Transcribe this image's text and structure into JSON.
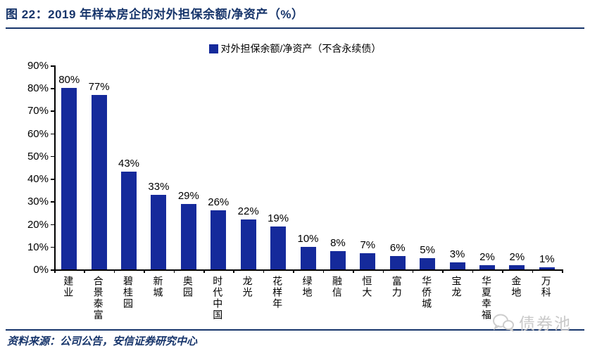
{
  "header": {
    "title": "图 22：2019 年样本房企的对外担保余额/净资产（%）"
  },
  "legend": {
    "label": "对外担保余额/净资产（不含永续债）"
  },
  "chart_data": {
    "type": "bar",
    "title": "2019 年样本房企的对外担保余额/净资产（%）",
    "categories": [
      "建业",
      "合景泰富",
      "碧桂园",
      "新城",
      "奥园",
      "时代中国",
      "龙光",
      "花样年",
      "绿地",
      "融信",
      "恒大",
      "富力",
      "华侨城",
      "宝龙",
      "华夏幸福",
      "金地",
      "万科"
    ],
    "values": [
      80,
      77,
      43,
      33,
      29,
      26,
      22,
      19,
      10,
      8,
      7,
      6,
      5,
      3,
      2,
      2,
      1
    ],
    "value_labels": [
      "80%",
      "77%",
      "43%",
      "33%",
      "29%",
      "26%",
      "22%",
      "19%",
      "10%",
      "8%",
      "7%",
      "6%",
      "5%",
      "3%",
      "2%",
      "2%",
      "1%"
    ],
    "xlabel": "",
    "ylabel": "",
    "ylim": [
      0,
      90
    ],
    "ytick_step": 10,
    "ytick_labels": [
      "0%",
      "10%",
      "20%",
      "30%",
      "40%",
      "50%",
      "60%",
      "70%",
      "80%",
      "90%"
    ],
    "grid": false,
    "legend_position": "top",
    "legend_entries": [
      "对外担保余额/净资产（不含永续债）"
    ],
    "bar_color": "#152a9b"
  },
  "footer": {
    "source": "资料来源：公司公告，安信证券研究中心"
  },
  "watermark": {
    "label": "债券池"
  },
  "colors": {
    "accent": "#17356b",
    "bar": "#152a9b",
    "axis": "#000000",
    "watermark": "#c9c9c9"
  }
}
